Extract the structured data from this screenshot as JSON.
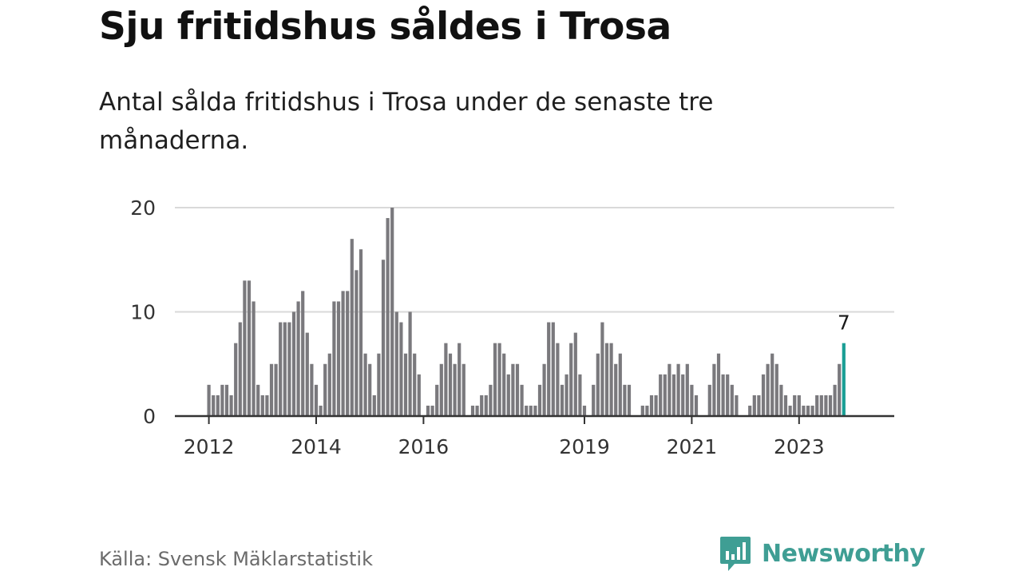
{
  "title": "Sju fritidshus såldes i Trosa",
  "subtitle": "Antal sålda fritidshus i Trosa under de senaste tre månaderna.",
  "source": "Källa: Svensk Mäklarstatistik",
  "brand": {
    "name": "Newsworthy",
    "icon": "newsworthy-chart-bubble-icon",
    "color": "#3f9e94"
  },
  "colors": {
    "bar": "#7a797d",
    "highlight": "#1a9e95",
    "grid": "#d9d9d9",
    "axis": "#333333"
  },
  "chart_data": {
    "type": "bar",
    "start": "2012-01",
    "frequency": "monthly",
    "values": [
      3,
      2,
      2,
      3,
      3,
      2,
      7,
      9,
      13,
      13,
      11,
      3,
      2,
      2,
      5,
      5,
      9,
      9,
      9,
      10,
      11,
      12,
      8,
      5,
      3,
      1,
      5,
      6,
      11,
      11,
      12,
      12,
      17,
      14,
      16,
      6,
      5,
      2,
      6,
      15,
      19,
      20,
      10,
      9,
      6,
      10,
      6,
      4,
      0,
      1,
      1,
      3,
      5,
      7,
      6,
      5,
      7,
      5,
      0,
      1,
      1,
      2,
      2,
      3,
      7,
      7,
      6,
      4,
      5,
      5,
      3,
      1,
      1,
      1,
      3,
      5,
      9,
      9,
      7,
      3,
      4,
      7,
      8,
      4,
      1,
      0,
      3,
      6,
      9,
      7,
      7,
      5,
      6,
      3,
      3,
      0,
      0,
      1,
      1,
      2,
      2,
      4,
      4,
      5,
      4,
      5,
      4,
      5,
      3,
      2,
      0,
      0,
      3,
      5,
      6,
      4,
      4,
      3,
      2,
      0,
      0,
      1,
      2,
      2,
      4,
      5,
      6,
      5,
      3,
      2,
      1,
      2,
      2,
      1,
      1,
      1,
      2,
      2,
      2,
      2,
      3,
      5,
      7
    ],
    "highlight_last": true,
    "highlight_label": "7",
    "yticks": [
      0,
      10,
      20
    ],
    "ylim": [
      0,
      20
    ],
    "xticks": [
      "2012",
      "2014",
      "2016",
      "2019",
      "2021",
      "2023"
    ],
    "grid": true
  }
}
